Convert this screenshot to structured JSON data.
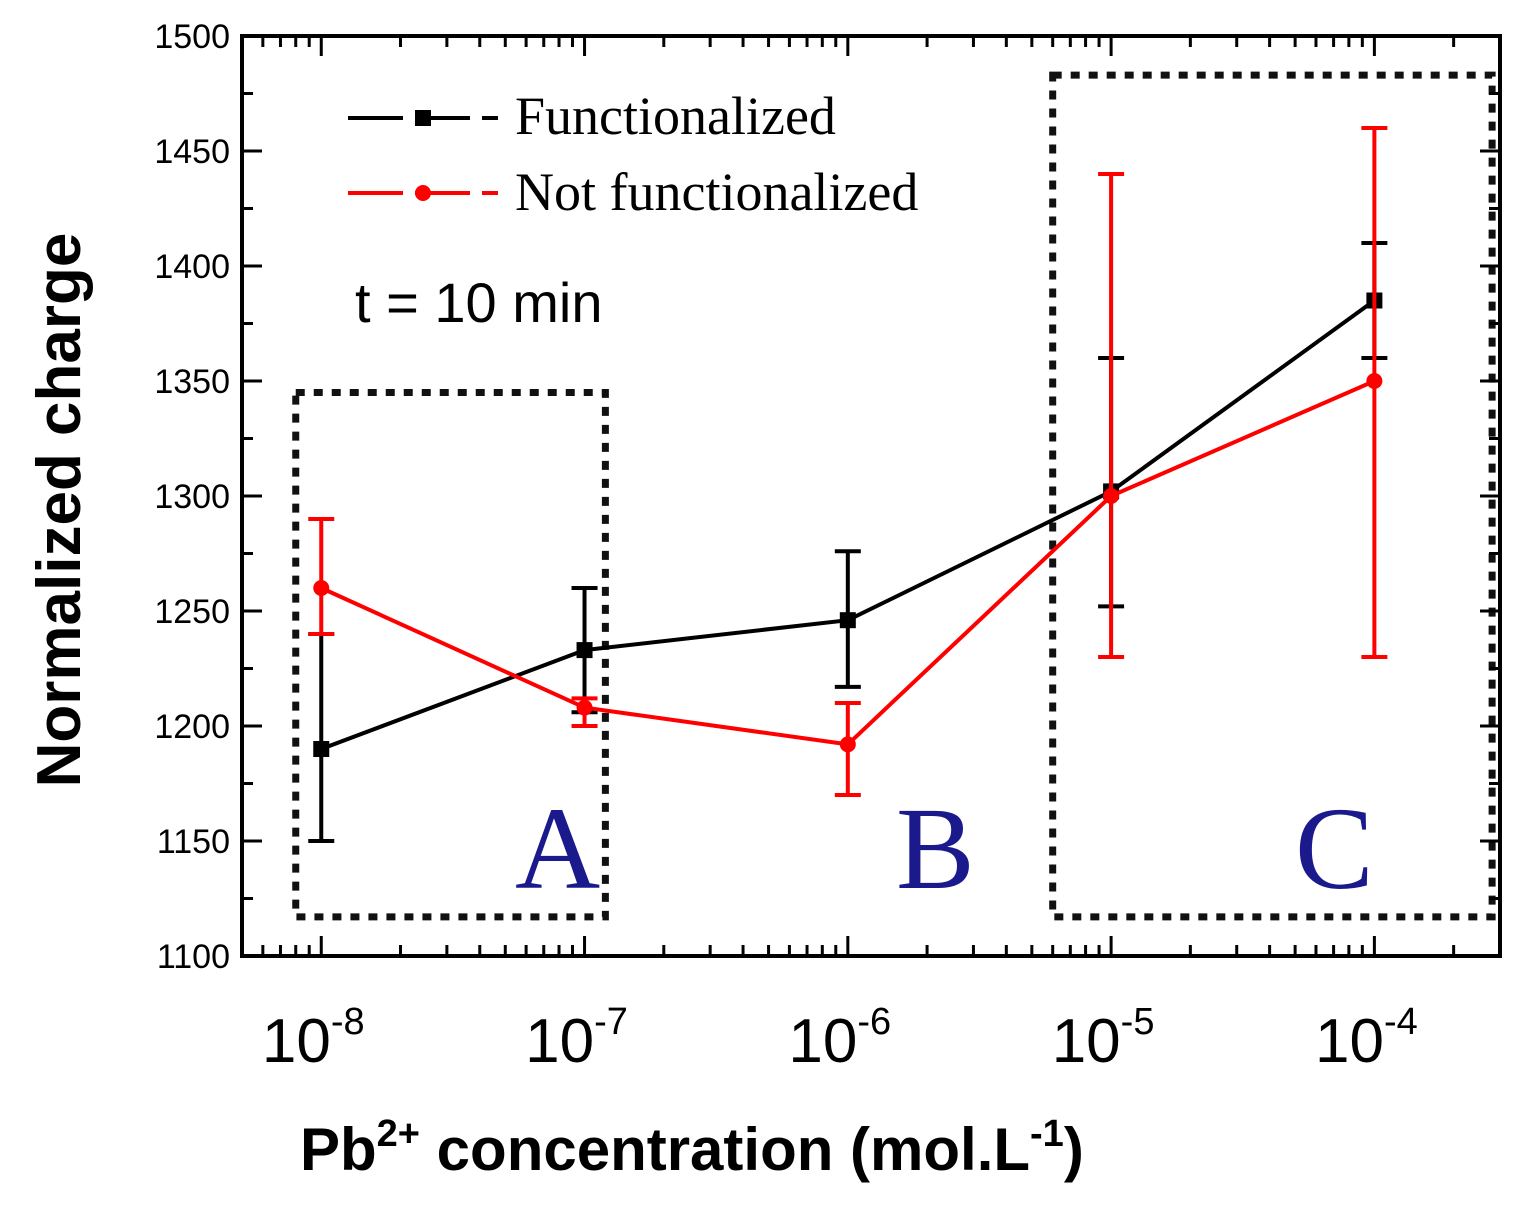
{
  "chart_data": {
    "type": "line",
    "x_scale": "log",
    "categories": [
      "10^-8",
      "10^-7",
      "10^-6",
      "10^-5",
      "10^-4"
    ],
    "x": [
      1e-08,
      1e-07,
      1e-06,
      1e-05,
      0.0001
    ],
    "x_tick_labels": [
      {
        "base": "10",
        "exp": "-8"
      },
      {
        "base": "10",
        "exp": "-7"
      },
      {
        "base": "10",
        "exp": "-6"
      },
      {
        "base": "10",
        "exp": "-5"
      },
      {
        "base": "10",
        "exp": "-4"
      }
    ],
    "xlim": [
      5e-09,
      0.0003
    ],
    "ylim": [
      1100,
      1500
    ],
    "y_ticks": [
      1100,
      1150,
      1200,
      1250,
      1300,
      1350,
      1400,
      1450,
      1500
    ],
    "xlabel": {
      "prefix": "Pb",
      "prefix_sup": "2+",
      "middle": " concentration (mol.L",
      "unit_sup": "-1",
      "suffix": ")"
    },
    "ylabel": "Normalized charge",
    "series": [
      {
        "name": "Functionalized",
        "color": "#000000",
        "marker": "square",
        "values": [
          1190,
          1233,
          1246,
          1302,
          1385
        ],
        "err_low": [
          1150,
          1206,
          1217,
          1252,
          1360
        ],
        "err_high": [
          1240,
          1260,
          1276,
          1360,
          1410
        ]
      },
      {
        "name": "Not functionalized",
        "color": "#ff0000",
        "marker": "circle",
        "values": [
          1260,
          1208,
          1192,
          1300,
          1350
        ],
        "err_low": [
          1240,
          1200,
          1170,
          1230,
          1230
        ],
        "err_high": [
          1290,
          1212,
          1210,
          1440,
          1460
        ]
      }
    ],
    "annotation": "t = 10 min",
    "regions": [
      {
        "label": "A",
        "x_range": [
          8e-09,
          1.2e-07
        ],
        "y_range": [
          1117,
          1345
        ]
      },
      {
        "label": "B"
      },
      {
        "label": "C",
        "x_range": [
          6e-06,
          0.00028
        ],
        "y_range": [
          1117,
          1483
        ]
      }
    ],
    "legend": "top-left",
    "region_color": "#1a1a8c"
  }
}
